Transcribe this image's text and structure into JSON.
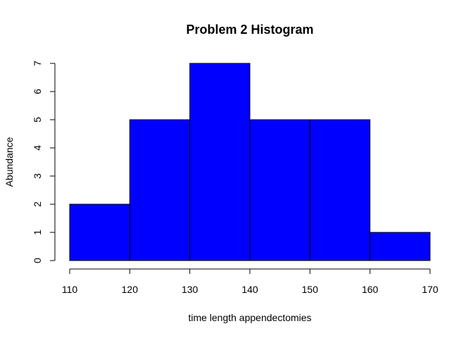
{
  "chart_data": {
    "type": "bar",
    "title": "Problem 2 Histogram",
    "xlabel": "time length appendectomies",
    "ylabel": "Abundance",
    "bin_edges": [
      110,
      120,
      130,
      140,
      150,
      160,
      170
    ],
    "values": [
      2,
      5,
      7,
      5,
      5,
      1
    ],
    "xlim": [
      110,
      170
    ],
    "ylim": [
      0,
      7
    ],
    "x_ticks": [
      110,
      120,
      130,
      140,
      150,
      160,
      170
    ],
    "y_ticks": [
      0,
      1,
      2,
      3,
      4,
      5,
      6,
      7
    ],
    "bar_color": "#0000ff",
    "border_color": "#000000",
    "grid": false
  }
}
